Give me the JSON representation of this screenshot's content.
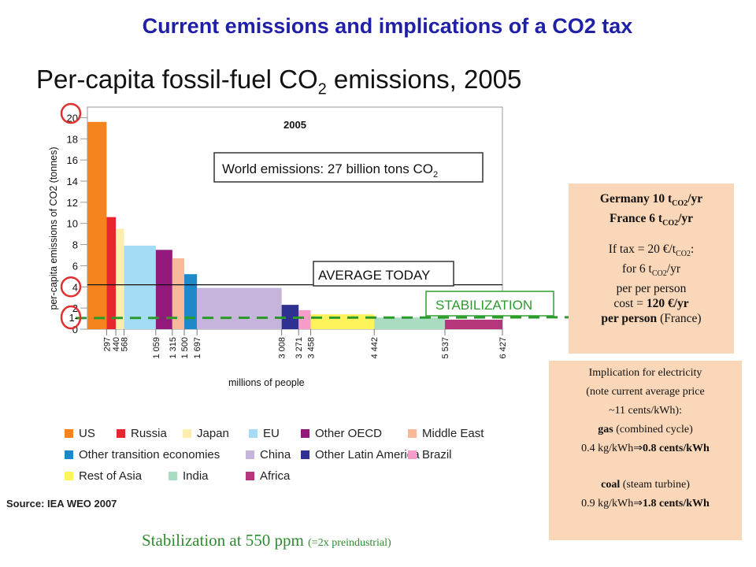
{
  "slide_title": "Current emissions and implications of a CO2 tax",
  "chart_title": {
    "main": "Per-capita fossil-fuel CO",
    "sub": "2",
    "tail": " emissions, 2005"
  },
  "chart_data": {
    "type": "bar",
    "variable_width": true,
    "inner_title": "2005",
    "callout": {
      "main": "World emissions: 27 billion tons CO",
      "sub": "2"
    },
    "ylabel": "per-capita emissions of CO2 (tonnes)",
    "xlabel": "millions of people",
    "ylim": [
      0,
      21
    ],
    "xlim": [
      0,
      6427
    ],
    "y_ticks": [
      "0",
      "2",
      "4",
      "6",
      "8",
      "10",
      "12",
      "14",
      "16",
      "18",
      "20"
    ],
    "x_ticks": [
      "297",
      "440",
      "568",
      "1 059",
      "1 315",
      "1 500",
      "1 697",
      "3 008",
      "3 271",
      "3 458",
      "4 442",
      "5 537",
      "6 427"
    ],
    "x_tick_values": [
      297,
      440,
      568,
      1059,
      1315,
      1500,
      1697,
      3008,
      3271,
      3458,
      4442,
      5537,
      6427
    ],
    "reference_lines": [
      {
        "label": "AVERAGE TODAY",
        "value": 4.2
      },
      {
        "label": "STABILIZATION",
        "value": 1.2
      }
    ],
    "highlighted_ticks": [
      "20",
      "4",
      "1-"
    ],
    "series": [
      {
        "name": "US",
        "color": "#f5841f",
        "x0": 0,
        "x1": 297,
        "value": 19.6
      },
      {
        "name": "Russia",
        "color": "#e8262d",
        "x0": 297,
        "x1": 440,
        "value": 10.6
      },
      {
        "name": "Japan",
        "color": "#fdeeae",
        "x0": 440,
        "x1": 568,
        "value": 9.5
      },
      {
        "name": "EU",
        "color": "#a4dcf6",
        "x0": 568,
        "x1": 1059,
        "value": 7.9
      },
      {
        "name": "Other OECD",
        "color": "#94197c",
        "x0": 1059,
        "x1": 1315,
        "value": 7.5
      },
      {
        "name": "Middle East",
        "color": "#f8b998",
        "x0": 1315,
        "x1": 1500,
        "value": 6.7
      },
      {
        "name": "Other transition economies",
        "color": "#1e88c8",
        "x0": 1500,
        "x1": 1697,
        "value": 5.2
      },
      {
        "name": "China",
        "color": "#c6b5da",
        "x0": 1697,
        "x1": 3008,
        "value": 3.9
      },
      {
        "name": "Other Latin America",
        "color": "#2e3192",
        "x0": 3008,
        "x1": 3271,
        "value": 2.3
      },
      {
        "name": "Brazil",
        "color": "#f59cc8",
        "x0": 3271,
        "x1": 3458,
        "value": 1.8
      },
      {
        "name": "Rest of Asia",
        "color": "#fef35a",
        "x0": 3458,
        "x1": 4442,
        "value": 1.4
      },
      {
        "name": "India",
        "color": "#a9dcc1",
        "x0": 4442,
        "x1": 5537,
        "value": 1.1
      },
      {
        "name": "Africa",
        "color": "#b5367a",
        "x0": 5537,
        "x1": 6427,
        "value": 0.9
      }
    ],
    "legend": [
      "US",
      "Russia",
      "Japan",
      "EU",
      "Other OECD",
      "Middle East",
      "Other transition economies",
      "China",
      "Other Latin America",
      "Brazil",
      "Rest of Asia",
      "India",
      "Africa"
    ]
  },
  "source": "Source: IEA WEO 2007",
  "stabilization_note": {
    "main": "Stabilization at 550 ppm ",
    "small": "(=2x preindustrial)"
  },
  "tax_box": {
    "germany": {
      "pre": "Germany 10 t",
      "sub": "CO2",
      "post": "/yr"
    },
    "france": {
      "pre": "France 6 t",
      "sub": "CO2",
      "post": "/yr"
    },
    "tax_line": {
      "pre": "If tax = 20 €/t",
      "sub": "CO2",
      "post": ":"
    },
    "for_line": {
      "pre": "for 6 t",
      "sub": "CO2",
      "post": "/yr"
    },
    "per_line": "per per person",
    "cost_line": {
      "pre": "cost = ",
      "bold": "120 €/yr"
    },
    "last_line": {
      "bold": "per person",
      "post": "  (France)"
    }
  },
  "electricity_box": {
    "line1": "Implication for electricity",
    "line2": "(note current average price",
    "line3": "~11 cents/kWh):",
    "gas_label": {
      "bold": "gas",
      "post": " (combined cycle)"
    },
    "gas_calc": {
      "pre": "0.4 kg/kWh",
      "arrow": "⇒",
      "bold": "0.8 cents/kWh"
    },
    "coal_label": {
      "bold": "coal",
      "post": " (steam turbine)"
    },
    "coal_calc": {
      "pre": "0.9 kg/kWh",
      "arrow": "⇒",
      "bold": "1.8 cents/kWh"
    }
  }
}
